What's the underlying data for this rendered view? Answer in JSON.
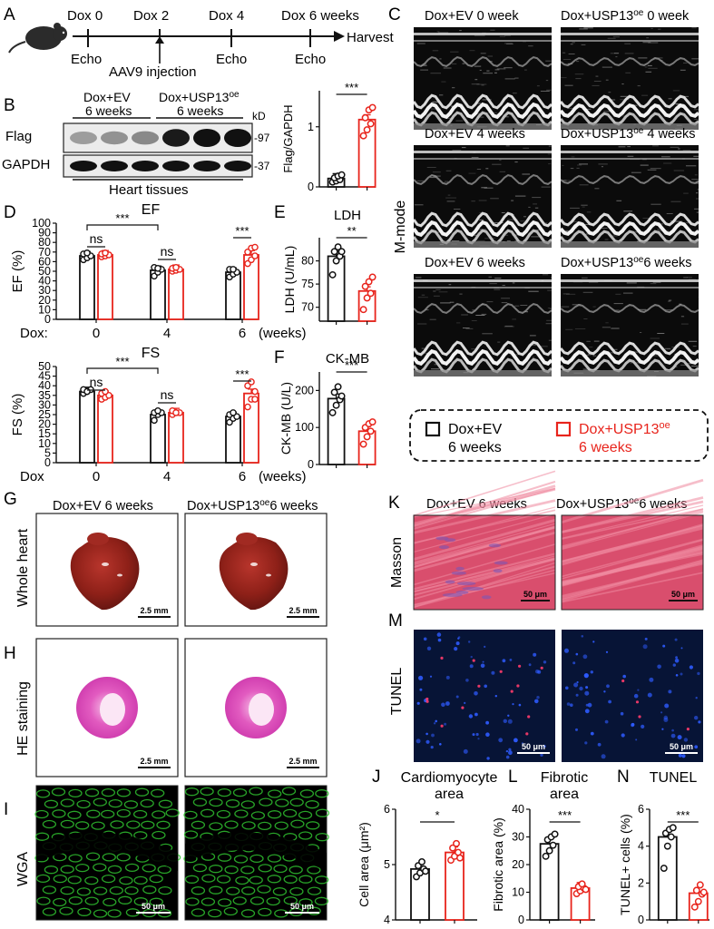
{
  "colors": {
    "ev": "#111111",
    "oe": "#e8241c",
    "gfp": "#2fbf2f",
    "he": "#e25bc0",
    "masson_bg": "#d94e6d",
    "tunel_bg": "#071436",
    "heart": "#8e2018"
  },
  "panel_labels": {
    "A": "A",
    "B": "B",
    "C": "C",
    "D": "D",
    "E": "E",
    "F": "F",
    "G": "G",
    "H": "H",
    "I": "I",
    "J": "J",
    "K": "K",
    "L": "L",
    "M": "M",
    "N": "N"
  },
  "timeline": {
    "timepoints": [
      "Dox 0",
      "Dox 2",
      "Dox 4",
      "Dox 6 weeks"
    ],
    "harvest": "Harvest",
    "echo": "Echo",
    "injection": "AAV9 injection"
  },
  "western": {
    "group_ev": "Dox+EV",
    "group_ev_time": "6 weeks",
    "group_oe_main": "Dox+USP13",
    "group_oe_sup": "oe",
    "group_oe_time": "6 weeks",
    "kd": "kD",
    "rows": [
      "Flag",
      "GAPDH"
    ],
    "markers": [
      "-97",
      "-37"
    ],
    "tissue": "Heart tissues",
    "band_intensity": {
      "flag_ev": [
        0.25,
        0.3,
        0.35
      ],
      "flag_oe": [
        0.95,
        1.0,
        1.0
      ],
      "gapdh": [
        1,
        1,
        1,
        1,
        1,
        1
      ]
    }
  },
  "bar_units": {
    "ev_label": "Dox+EV",
    "oe_label": "Dox+USP13"
  },
  "legend": {
    "ev_l1": "Dox+EV",
    "ev_l2": "6 weeks",
    "oe_l1": "Dox+USP13",
    "oe_sup": "oe",
    "oe_l2": "6 weeks"
  },
  "echo_panels": {
    "side_label": "M-mode",
    "titles": [
      {
        "main": "Dox+EV 0 week",
        "sup": ""
      },
      {
        "main": "Dox+USP13",
        "sup": "oe",
        "rest": " 0 week"
      },
      {
        "main": "Dox+EV 4 weeks",
        "sup": ""
      },
      {
        "main": "Dox+USP13",
        "sup": "oe",
        "rest": " 4 weeks"
      },
      {
        "main": "Dox+EV 6 weeks",
        "sup": ""
      },
      {
        "main": "Dox+USP13",
        "sup": "oe",
        "rest": "6 weeks"
      }
    ]
  },
  "histology": {
    "g_titles": [
      {
        "main": "Dox+EV 6 weeks"
      },
      {
        "main": "Dox+USP13",
        "sup": "oe",
        "rest": "6 weeks"
      }
    ],
    "k_titles": [
      {
        "main": "Dox+EV 6 weeks"
      },
      {
        "main": "Dox+USP13",
        "sup": "oe",
        "rest": "6 weeks"
      }
    ],
    "row_labels": {
      "g": "Whole heart",
      "h": "HE staining",
      "i": "WGA",
      "k": "Masson",
      "m": "TUNEL"
    },
    "scale_mm": "2.5 mm",
    "scale_um": "50 μm"
  },
  "chart_data": [
    {
      "id": "B",
      "type": "bar",
      "title": "",
      "ylabel": "Flag/GAPDH",
      "ylim": [
        0,
        1.6
      ],
      "yticks": [
        0,
        1
      ],
      "series": [
        {
          "name": "Dox+EV",
          "values": [
            0.14
          ],
          "points": [
            0.08,
            0.1,
            0.12,
            0.15,
            0.18,
            0.2
          ]
        },
        {
          "name": "Dox+USP13oe",
          "values": [
            1.12
          ],
          "points": [
            0.85,
            0.95,
            1.05,
            1.15,
            1.28,
            1.32
          ]
        }
      ],
      "significance": "***"
    },
    {
      "id": "D-EF",
      "type": "bar",
      "title": "EF",
      "ylabel": "EF (%)",
      "ylim": [
        0,
        100
      ],
      "yticks": [
        0,
        10,
        20,
        30,
        40,
        50,
        60,
        70,
        80,
        90,
        100
      ],
      "x_prefix": "Dox:",
      "categories": [
        "0",
        "4",
        "6"
      ],
      "x_unit": "(weeks)",
      "series": [
        {
          "name": "Dox+EV",
          "values": [
            66,
            51,
            49
          ],
          "points": [
            [
              62,
              64,
              66,
              68,
              69
            ],
            [
              45,
              49,
              52,
              54,
              53
            ],
            [
              44,
              47,
              49,
              52,
              52
            ]
          ]
        },
        {
          "name": "Dox+USP13oe",
          "values": [
            67,
            52,
            67
          ],
          "points": [
            [
              65,
              66,
              67,
              68,
              69
            ],
            [
              50,
              51,
              52,
              53,
              54
            ],
            [
              58,
              62,
              66,
              70,
              74,
              75
            ]
          ]
        }
      ],
      "annotations": [
        "***",
        "ns",
        "ns",
        "***"
      ]
    },
    {
      "id": "D-FS",
      "type": "bar",
      "title": "FS",
      "ylabel": "FS (%)",
      "ylim": [
        0,
        50
      ],
      "yticks": [
        0,
        5,
        10,
        15,
        20,
        25,
        30,
        35,
        40,
        45,
        50
      ],
      "x_prefix": "Dox",
      "categories": [
        "0",
        "4",
        "6"
      ],
      "x_unit": "(weeks)",
      "series": [
        {
          "name": "Dox+EV",
          "values": [
            37,
            25,
            24
          ],
          "points": [
            [
              36,
              37,
              38,
              38,
              37
            ],
            [
              22,
              25,
              26,
              26,
              27
            ],
            [
              21,
              23,
              24,
              25,
              26
            ]
          ]
        },
        {
          "name": "Dox+USP13oe",
          "values": [
            35,
            26,
            36
          ],
          "points": [
            [
              33,
              34,
              35,
              36,
              37
            ],
            [
              25,
              26,
              26,
              27,
              26
            ],
            [
              29,
              33,
              37,
              40,
              42,
              33
            ]
          ]
        }
      ],
      "annotations": [
        "***",
        "ns",
        "ns",
        "***"
      ]
    },
    {
      "id": "E",
      "type": "bar",
      "title": "LDH",
      "ylabel": "LDH (U/mL)",
      "ylim": [
        67,
        85
      ],
      "yticks": [
        70,
        75,
        80
      ],
      "series": [
        {
          "name": "Dox+EV",
          "values": [
            81
          ],
          "points": [
            77,
            80,
            81,
            82,
            83,
            82
          ]
        },
        {
          "name": "Dox+USP13oe",
          "values": [
            73.5
          ],
          "points": [
            69.5,
            72,
            73,
            74.5,
            75.5,
            76.5
          ]
        }
      ],
      "significance": "**"
    },
    {
      "id": "F",
      "type": "bar",
      "title": "CK-MB",
      "ylabel": "CK-MB (U/L)",
      "ylim": [
        0,
        250
      ],
      "yticks": [
        0,
        100,
        200
      ],
      "series": [
        {
          "name": "Dox+EV",
          "values": [
            178
          ],
          "points": [
            140,
            160,
            175,
            195,
            210,
            185
          ]
        },
        {
          "name": "Dox+USP13oe",
          "values": [
            90
          ],
          "points": [
            55,
            75,
            90,
            100,
            110,
            115
          ]
        }
      ],
      "significance": "***"
    },
    {
      "id": "J",
      "type": "bar",
      "title": "Cardiomyocyte area",
      "ylabel": "Cell area (μm²)",
      "ylim": [
        4,
        6
      ],
      "yticks": [
        4,
        5,
        6
      ],
      "series": [
        {
          "name": "Dox+EV",
          "values": [
            4.92
          ],
          "points": [
            4.78,
            4.85,
            4.92,
            4.98,
            5.05,
            4.88
          ]
        },
        {
          "name": "Dox+USP13oe",
          "values": [
            5.22
          ],
          "points": [
            5.08,
            5.15,
            5.22,
            5.3,
            5.38,
            5.12
          ]
        }
      ],
      "significance": "*"
    },
    {
      "id": "L",
      "type": "bar",
      "title": "Fibrotic area",
      "ylabel": "Fibrotic area (%)",
      "ylim": [
        0,
        40
      ],
      "yticks": [
        0,
        10,
        20,
        30,
        40
      ],
      "series": [
        {
          "name": "Dox+EV",
          "values": [
            27.5
          ],
          "points": [
            23,
            25,
            27,
            29,
            30,
            31
          ]
        },
        {
          "name": "Dox+USP13oe",
          "values": [
            11.5
          ],
          "points": [
            9.5,
            10.5,
            11.5,
            12,
            13,
            11
          ]
        }
      ],
      "significance": "***"
    },
    {
      "id": "N",
      "type": "bar",
      "title": "TUNEL",
      "ylabel": "TUNEL+ cells (%)",
      "ylim": [
        0,
        6
      ],
      "yticks": [
        0,
        2,
        4,
        6
      ],
      "series": [
        {
          "name": "Dox+EV",
          "values": [
            4.5
          ],
          "points": [
            2.8,
            4.0,
            4.5,
            4.7,
            4.9,
            5.0
          ]
        },
        {
          "name": "Dox+USP13oe",
          "values": [
            1.45
          ],
          "points": [
            0.7,
            1.0,
            1.4,
            1.6,
            1.9,
            1.5
          ]
        }
      ],
      "significance": "***"
    }
  ]
}
